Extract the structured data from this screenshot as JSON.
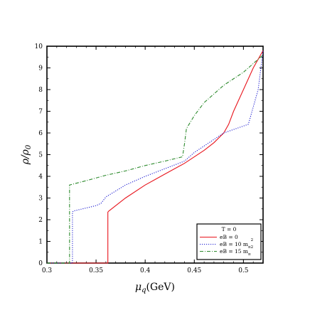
{
  "chart_data": {
    "type": "line",
    "xlabel_main": "μ",
    "xlabel_sub": "q",
    "xlabel_rest": "(GeV)",
    "ylabel_main": "ρ/ρ",
    "ylabel_sub": "0",
    "xlim": [
      0.3,
      0.52
    ],
    "ylim": [
      0,
      10
    ],
    "xticks": [
      {
        "v": 0.3,
        "label": "0.3"
      },
      {
        "v": 0.35,
        "label": "0.35"
      },
      {
        "v": 0.4,
        "label": "0.4"
      },
      {
        "v": 0.45,
        "label": "0.45"
      },
      {
        "v": 0.5,
        "label": "0.5"
      }
    ],
    "yticks": [
      {
        "v": 0,
        "label": "0"
      },
      {
        "v": 1,
        "label": "1"
      },
      {
        "v": 2,
        "label": "2"
      },
      {
        "v": 3,
        "label": "3"
      },
      {
        "v": 4,
        "label": "4"
      },
      {
        "v": 5,
        "label": "5"
      },
      {
        "v": 6,
        "label": "6"
      },
      {
        "v": 7,
        "label": "7"
      },
      {
        "v": 8,
        "label": "8"
      },
      {
        "v": 9,
        "label": "9"
      },
      {
        "v": 10,
        "label": "10"
      }
    ],
    "grid": false,
    "legend_position": "bottom-right",
    "legend_title": "T = 0",
    "series": [
      {
        "name": "eB = 0",
        "color": "#e8141c",
        "dash": "solid",
        "x": [
          0.3,
          0.362,
          0.362,
          0.363,
          0.38,
          0.4,
          0.42,
          0.44,
          0.46,
          0.47,
          0.48,
          0.485,
          0.49,
          0.5,
          0.51,
          0.52
        ],
        "y": [
          0,
          0,
          2.35,
          2.4,
          3.0,
          3.6,
          4.1,
          4.6,
          5.2,
          5.55,
          6.0,
          6.4,
          7.0,
          8.0,
          9.0,
          9.8
        ]
      },
      {
        "name": "eB = 10 m",
        "sup": "2",
        "sub": "π",
        "color": "#1a1ad0",
        "dash": "dotted",
        "x": [
          0.3,
          0.326,
          0.326,
          0.327,
          0.35,
          0.355,
          0.36,
          0.38,
          0.4,
          0.42,
          0.44,
          0.45,
          0.46,
          0.48,
          0.505,
          0.51,
          0.515,
          0.52
        ],
        "y": [
          0,
          0,
          2.35,
          2.4,
          2.65,
          2.75,
          3.05,
          3.6,
          4.0,
          4.35,
          4.7,
          5.1,
          5.4,
          6.0,
          6.4,
          7.2,
          8.0,
          9.8
        ]
      },
      {
        "name": "eB = 15 m",
        "sup": "2",
        "sub": "π",
        "color": "#2e8b2e",
        "dash": "dashdot",
        "x": [
          0.3,
          0.323,
          0.323,
          0.34,
          0.36,
          0.38,
          0.4,
          0.42,
          0.438,
          0.44,
          0.442,
          0.45,
          0.46,
          0.48,
          0.5,
          0.52
        ],
        "y": [
          0,
          0,
          3.6,
          3.8,
          4.05,
          4.25,
          4.5,
          4.7,
          4.9,
          5.5,
          6.2,
          6.8,
          7.4,
          8.2,
          8.8,
          9.6
        ]
      }
    ]
  }
}
